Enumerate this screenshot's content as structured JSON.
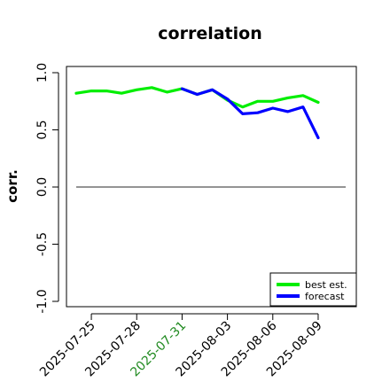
{
  "chart_data": {
    "type": "line",
    "title": "correlation",
    "ylabel": "corr.",
    "xlabel": "",
    "ylim": [
      -1.0,
      1.0
    ],
    "yticks": [
      "-1.0",
      "-0.5",
      "0.0",
      "0.5",
      "1.0"
    ],
    "x": [
      "2025-07-24",
      "2025-07-25",
      "2025-07-26",
      "2025-07-27",
      "2025-07-28",
      "2025-07-29",
      "2025-07-30",
      "2025-07-31",
      "2025-08-01",
      "2025-08-02",
      "2025-08-03",
      "2025-08-04",
      "2025-08-05",
      "2025-08-06",
      "2025-08-07",
      "2025-08-08",
      "2025-08-09"
    ],
    "xticks": [
      {
        "label": "2025-07-25",
        "color": "#000000"
      },
      {
        "label": "2025-07-28",
        "color": "#000000"
      },
      {
        "label": "2025-07-31",
        "color": "#228B22"
      },
      {
        "label": "2025-08-03",
        "color": "#000000"
      },
      {
        "label": "2025-08-06",
        "color": "#000000"
      },
      {
        "label": "2025-08-09",
        "color": "#000000"
      }
    ],
    "series": [
      {
        "name": "best est.",
        "color": "#00ee00",
        "values": [
          0.82,
          0.84,
          0.84,
          0.82,
          0.85,
          0.87,
          0.83,
          0.86,
          0.81,
          0.85,
          0.76,
          0.7,
          0.75,
          0.75,
          0.78,
          0.8,
          0.74
        ]
      },
      {
        "name": "forecast",
        "color": "#0000ff",
        "values": [
          null,
          null,
          null,
          null,
          null,
          null,
          null,
          0.86,
          0.81,
          0.85,
          0.77,
          0.64,
          0.65,
          0.69,
          0.66,
          0.7,
          0.43
        ]
      }
    ],
    "reference_line": 0.0,
    "legend_position": "bottom-right",
    "grid": false
  }
}
